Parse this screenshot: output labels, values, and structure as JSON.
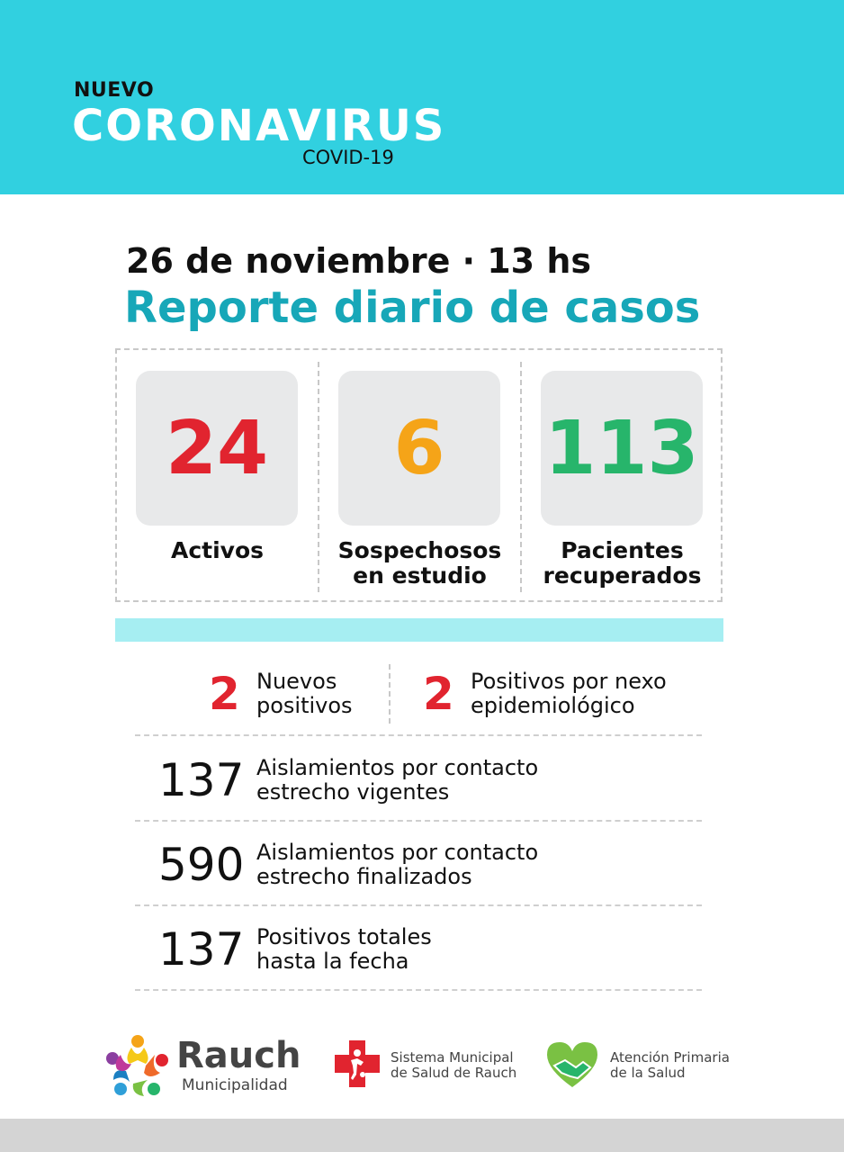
{
  "header": {
    "kicker": "NUEVO",
    "title": "CORONAVIRUS",
    "subtitle": "COVID-19"
  },
  "report": {
    "date_line": "26 de noviembre · 13 hs",
    "title": "Reporte diario de casos"
  },
  "cards": [
    {
      "value": "24",
      "label_line1": "Activos",
      "label_line2": "",
      "color": "#e1242f"
    },
    {
      "value": "6",
      "label_line1": "Sospechosos",
      "label_line2": "en estudio",
      "color": "#f5a418"
    },
    {
      "value": "113",
      "label_line1": "Pacientes",
      "label_line2": "recuperados",
      "color": "#27b56b"
    }
  ],
  "new_cases": [
    {
      "value": "2",
      "line1": "Nuevos",
      "line2": "positivos"
    },
    {
      "value": "2",
      "line1": "Positivos por nexo",
      "line2": "epidemiológico"
    }
  ],
  "stats": [
    {
      "value": "137",
      "line1": "Aislamientos por contacto",
      "line2": "estrecho vigentes"
    },
    {
      "value": "590",
      "line1": "Aislamientos por contacto",
      "line2": "estrecho finalizados"
    },
    {
      "value": "137",
      "line1": "Positivos totales",
      "line2": "hasta la fecha"
    }
  ],
  "footer": {
    "rauch_name": "Rauch",
    "rauch_sub": "Municipalidad",
    "sistema_line1": "Sistema Municipal",
    "sistema_line2": "de Salud de Rauch",
    "atencion_line1": "Atención Primaria",
    "atencion_line2": "de la Salud"
  }
}
